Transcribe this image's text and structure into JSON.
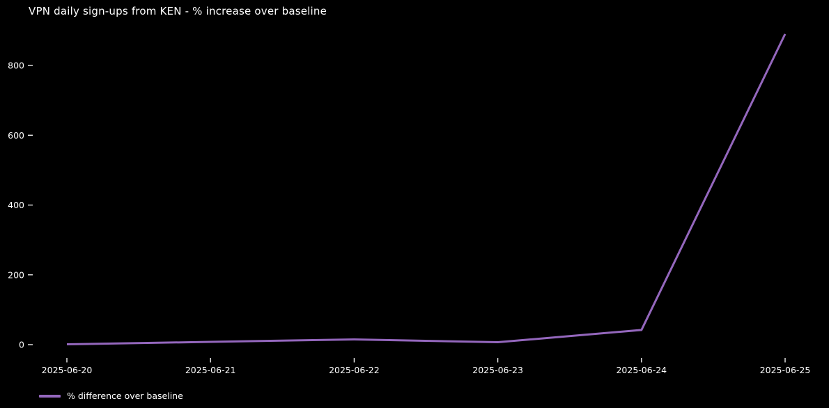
{
  "colors": {
    "background": "#000000",
    "text": "#ffffff",
    "line": "#9467bd"
  },
  "chart_data": {
    "type": "line",
    "title": "VPN daily sign-ups from KEN - % increase over baseline",
    "categories": [
      "2025-06-20",
      "2025-06-21",
      "2025-06-22",
      "2025-06-23",
      "2025-06-24",
      "2025-06-25"
    ],
    "series": [
      {
        "name": "% difference over baseline",
        "color": "#9467bd",
        "values": [
          1,
          8,
          15,
          7,
          42,
          890
        ]
      }
    ],
    "xlabel": "",
    "ylabel": "",
    "yticks": [
      0,
      200,
      400,
      600,
      800
    ],
    "ylim": [
      -30,
      915
    ],
    "grid": false,
    "legend_position": "bottom-left",
    "background": "black"
  }
}
